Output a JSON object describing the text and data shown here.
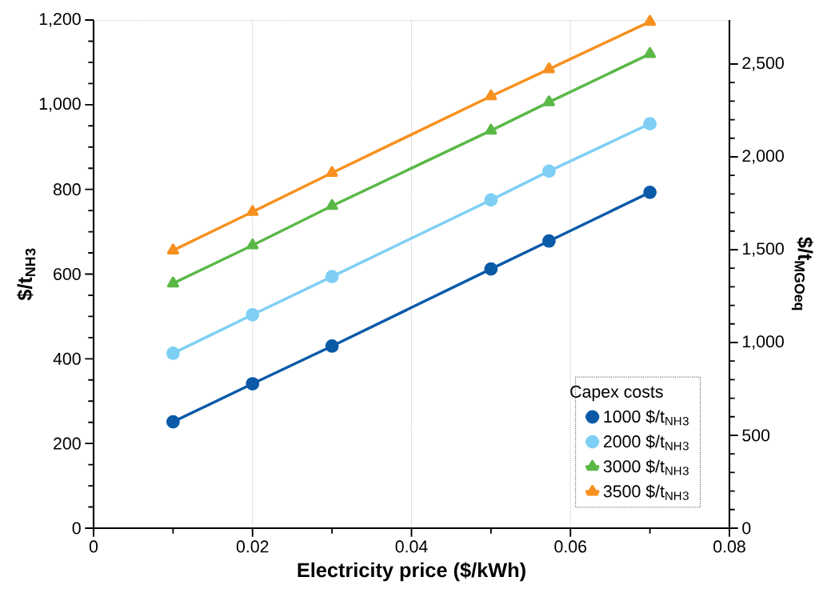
{
  "chart_data": {
    "type": "line",
    "xlabel": "Electricity price ($/kWh)",
    "ylabel": "$/t$_{NH}$$_{3}$",
    "y2label": "$/t$_{MGOeq}$",
    "legend_title": "Capex costs",
    "x": [
      0.01,
      0.02,
      0.03,
      0.05,
      0.0573,
      0.07
    ],
    "series": [
      {
        "name": "1000 $/t$_{NH}$$_{3}$",
        "color": "#0a5aa8",
        "marker": "circle",
        "values": [
          251,
          341,
          430,
          612,
          678,
          793
        ]
      },
      {
        "name": "2000 $/t$_{NH}$$_{3}$",
        "color": "#7fcff5",
        "marker": "circle",
        "values": [
          413,
          504,
          594,
          775,
          843,
          955
        ]
      },
      {
        "name": "3000 $/t$_{NH}$$_{3}$",
        "color": "#5ab847",
        "marker": "triangle",
        "values": [
          578,
          668,
          761,
          939,
          1006,
          1120
        ]
      },
      {
        "name": "3500 $/t$_{NH}$$_{3}$",
        "color": "#f7901e",
        "marker": "triangle-down",
        "values": [
          656,
          747,
          839,
          1020,
          1084,
          1196
        ]
      }
    ],
    "xlim": [
      0,
      0.08
    ],
    "xticks": [
      0,
      0.02,
      0.04,
      0.06,
      0.08
    ],
    "ylim": [
      0,
      1200
    ],
    "yticks": [
      0,
      200,
      400,
      600,
      800,
      {
        "value": 1000,
        "label": "1,000"
      },
      {
        "value": 1200,
        "label": "1,200"
      }
    ],
    "y2lim": [
      0,
      2737
    ],
    "y2ticks": [
      0,
      500,
      {
        "value": 1000,
        "label": "1,000"
      },
      {
        "value": 1500,
        "label": "1,500"
      },
      {
        "value": 2000,
        "label": "2,000"
      },
      {
        "value": 2500,
        "label": "2,500"
      }
    ],
    "grid": "x",
    "legend": "bottom right",
    "line_style": "solid"
  }
}
